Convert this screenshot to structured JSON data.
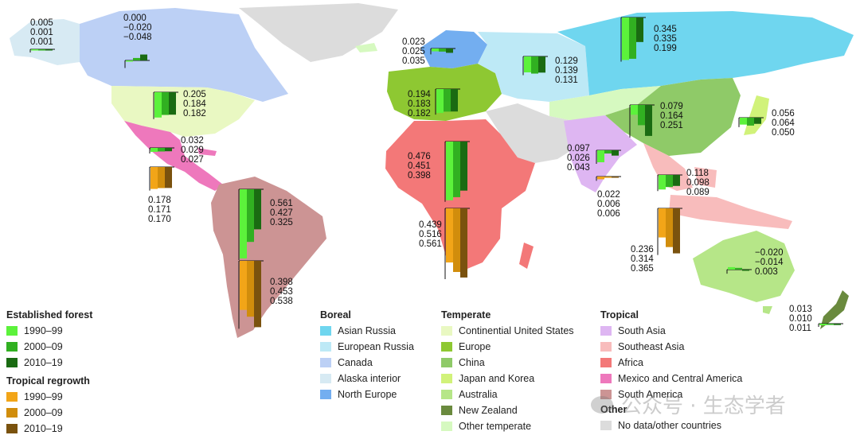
{
  "colors": {
    "established_1990": "#5cf23b",
    "established_2000": "#31b021",
    "established_2010": "#1a6b12",
    "regrowth_1990": "#f2a518",
    "regrowth_2000": "#d18d0c",
    "regrowth_2010": "#7a520e"
  },
  "legend": {
    "established_title": "Established forest",
    "regrowth_title": "Tropical regrowth",
    "established_items": [
      {
        "label": "1990–99",
        "color": "#5cf23b"
      },
      {
        "label": "2000–09",
        "color": "#31b021"
      },
      {
        "label": "2010–19",
        "color": "#1a6b12"
      }
    ],
    "regrowth_items": [
      {
        "label": "1990–99",
        "color": "#f2a518"
      },
      {
        "label": "2000–09",
        "color": "#d18d0c"
      },
      {
        "label": "2010–19",
        "color": "#7a520e"
      }
    ],
    "boreal": {
      "title": "Boreal",
      "items": [
        {
          "label": "Asian Russia",
          "color": "#6fd6ef"
        },
        {
          "label": "European Russia",
          "color": "#bde9f6"
        },
        {
          "label": "Canada",
          "color": "#bcd0f5"
        },
        {
          "label": "Alaska interior",
          "color": "#d7eaf3"
        },
        {
          "label": "North Europe",
          "color": "#73aef0"
        }
      ]
    },
    "temperate": {
      "title": "Temperate",
      "items": [
        {
          "label": "Continential United States",
          "color": "#e9f8c2"
        },
        {
          "label": "Europe",
          "color": "#8ec832"
        },
        {
          "label": "China",
          "color": "#8fca68"
        },
        {
          "label": "Japan and Korea",
          "color": "#d1f27a"
        },
        {
          "label": "Australia",
          "color": "#b6e688"
        },
        {
          "label": "New Zealand",
          "color": "#6a8a3e"
        },
        {
          "label": "Other temperate",
          "color": "#d6f9c0"
        }
      ]
    },
    "tropical": {
      "title": "Tropical",
      "items": [
        {
          "label": "South Asia",
          "color": "#deb6f2"
        },
        {
          "label": "Southeast Asia",
          "color": "#f8bcbc"
        },
        {
          "label": "Africa",
          "color": "#f37878"
        },
        {
          "label": "Mexico and Central America",
          "color": "#ee78bc"
        },
        {
          "label": "South America",
          "color": "#cc9494"
        }
      ]
    },
    "other": {
      "title": "Other",
      "items": [
        {
          "label": "No data/other countries",
          "color": "#dcdcdc"
        }
      ]
    }
  },
  "regions": [
    {
      "name": "alaska",
      "label": "Alaska interior",
      "type": "established",
      "values": [
        "0.005",
        "0.001",
        "0.001"
      ]
    },
    {
      "name": "canada",
      "label": "Canada",
      "type": "established",
      "values": [
        "0.000",
        "−0.020",
        "−0.048"
      ]
    },
    {
      "name": "continental-us",
      "label": "Continential United States",
      "type": "established",
      "values": [
        "0.205",
        "0.184",
        "0.182"
      ]
    },
    {
      "name": "mexico-central-america",
      "label": "Mexico and Central America",
      "type": "established",
      "values": [
        "0.032",
        "0.029",
        "0.027"
      ]
    },
    {
      "name": "mexico-central-america-regrowth",
      "label": "Mexico and Central America",
      "type": "regrowth",
      "values": [
        "0.178",
        "0.171",
        "0.170"
      ]
    },
    {
      "name": "south-america",
      "label": "South America",
      "type": "established",
      "values": [
        "0.561",
        "0.427",
        "0.325"
      ]
    },
    {
      "name": "south-america-regrowth",
      "label": "South America",
      "type": "regrowth",
      "values": [
        "0.398",
        "0.453",
        "0.538"
      ]
    },
    {
      "name": "north-europe",
      "label": "North Europe",
      "type": "established",
      "values": [
        "0.023",
        "0.025",
        "0.035"
      ]
    },
    {
      "name": "europe",
      "label": "Europe",
      "type": "established",
      "values": [
        "0.194",
        "0.183",
        "0.182"
      ]
    },
    {
      "name": "european-russia",
      "label": "European Russia",
      "type": "established",
      "values": [
        "0.129",
        "0.139",
        "0.131"
      ]
    },
    {
      "name": "asian-russia",
      "label": "Asian Russia",
      "type": "established",
      "values": [
        "0.345",
        "0.335",
        "0.199"
      ]
    },
    {
      "name": "china",
      "label": "China",
      "type": "established",
      "values": [
        "0.079",
        "0.164",
        "0.251"
      ]
    },
    {
      "name": "japan-korea",
      "label": "Japan and Korea",
      "type": "established",
      "values": [
        "0.056",
        "0.064",
        "0.050"
      ]
    },
    {
      "name": "africa",
      "label": "Africa",
      "type": "established",
      "values": [
        "0.476",
        "0.451",
        "0.398"
      ]
    },
    {
      "name": "africa-regrowth",
      "label": "Africa",
      "type": "regrowth",
      "values": [
        "0.439",
        "0.516",
        "0.561"
      ]
    },
    {
      "name": "south-asia",
      "label": "South Asia",
      "type": "established",
      "values": [
        "0.097",
        "0.026",
        "0.043"
      ]
    },
    {
      "name": "south-asia-regrowth",
      "label": "South Asia",
      "type": "regrowth",
      "values": [
        "0.022",
        "0.006",
        "0.006"
      ]
    },
    {
      "name": "southeast-asia",
      "label": "Southeast Asia",
      "type": "established",
      "values": [
        "0.118",
        "0.098",
        "0.089"
      ]
    },
    {
      "name": "southeast-asia-regrowth",
      "label": "Southeast Asia",
      "type": "regrowth",
      "values": [
        "0.236",
        "0.314",
        "0.365"
      ]
    },
    {
      "name": "australia",
      "label": "Australia",
      "type": "established",
      "values": [
        "−0.020",
        "−0.014",
        "0.003"
      ]
    },
    {
      "name": "new-zealand",
      "label": "New Zealand",
      "type": "established",
      "values": [
        "0.013",
        "0.010",
        "0.011"
      ]
    }
  ],
  "watermark": "公众号 · 生态学者"
}
